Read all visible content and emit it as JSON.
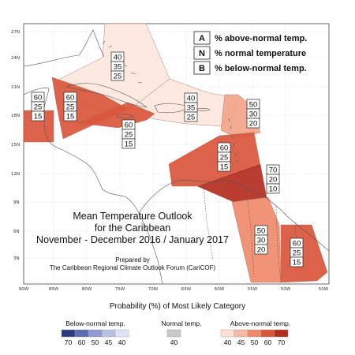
{
  "map": {
    "title_lines": [
      "Mean Temperature Outlook",
      "for the Caribbean",
      "November - December 2016 / January 2017"
    ],
    "credit_lines": [
      "Prepared by",
      "The Caribbean Regional Climate Outlook Forum (CariCOF)"
    ],
    "lat_labels": [
      "27N",
      "24N",
      "21N",
      "18N",
      "15N",
      "12N",
      "9N",
      "6N",
      "3N"
    ],
    "lon_labels": [
      "90W",
      "85W",
      "80W",
      "75W",
      "70W",
      "65W",
      "60W",
      "55W",
      "50W"
    ],
    "legend": [
      {
        "letter": "A",
        "text": "% above-normal temp."
      },
      {
        "letter": "N",
        "text": "% normal temperature"
      },
      {
        "letter": "B",
        "text": "% below-normal temp."
      }
    ],
    "regions": [
      {
        "name": "bahamas-cuba-region",
        "above": "40",
        "normal": "35",
        "below": "25",
        "color": "#fde7dd"
      },
      {
        "name": "hispaniola-lesser-antilles-region",
        "above": "40",
        "normal": "35",
        "below": "25",
        "color": "#fde7dd"
      },
      {
        "name": "belize-region",
        "above": "60",
        "normal": "25",
        "below": "15",
        "color": "#d9563b"
      },
      {
        "name": "cayman-region",
        "above": "60",
        "normal": "25",
        "below": "15",
        "color": "#d9563b"
      },
      {
        "name": "jamaica-region",
        "above": "60",
        "normal": "25",
        "below": "15",
        "color": "#d9563b"
      },
      {
        "name": "northern-leewards-region",
        "above": "50",
        "normal": "30",
        "below": "20",
        "color": "#f3a48a"
      },
      {
        "name": "windwards-region",
        "above": "60",
        "normal": "25",
        "below": "15",
        "color": "#d9563b"
      },
      {
        "name": "trinidad-venezuela-region",
        "above": "70",
        "normal": "20",
        "below": "10",
        "color": "#b32d1f"
      },
      {
        "name": "guyana-region",
        "above": "50",
        "normal": "30",
        "below": "20",
        "color": "#f08a6a"
      },
      {
        "name": "suriname-region",
        "above": "60",
        "normal": "25",
        "below": "15",
        "color": "#d9563b"
      }
    ]
  },
  "colorbar": {
    "title": "Probability (%) of Most Likely Category",
    "below": {
      "label": "Below-normal temp.",
      "values": [
        "70",
        "60",
        "50",
        "45",
        "40"
      ],
      "colors": [
        "#2b3a80",
        "#5b6cb3",
        "#8e9ad2",
        "#b9c0e4",
        "#dfe3f3"
      ]
    },
    "normal": {
      "label": "Normal temp.",
      "values": [
        "40"
      ],
      "colors": [
        "#c8c8c8"
      ]
    },
    "above": {
      "label": "Above-normal temp.",
      "values": [
        "40",
        "45",
        "50",
        "60",
        "70"
      ],
      "colors": [
        "#fde0d4",
        "#f8b9a4",
        "#f08a6a",
        "#d9563b",
        "#b32d1f"
      ]
    }
  }
}
